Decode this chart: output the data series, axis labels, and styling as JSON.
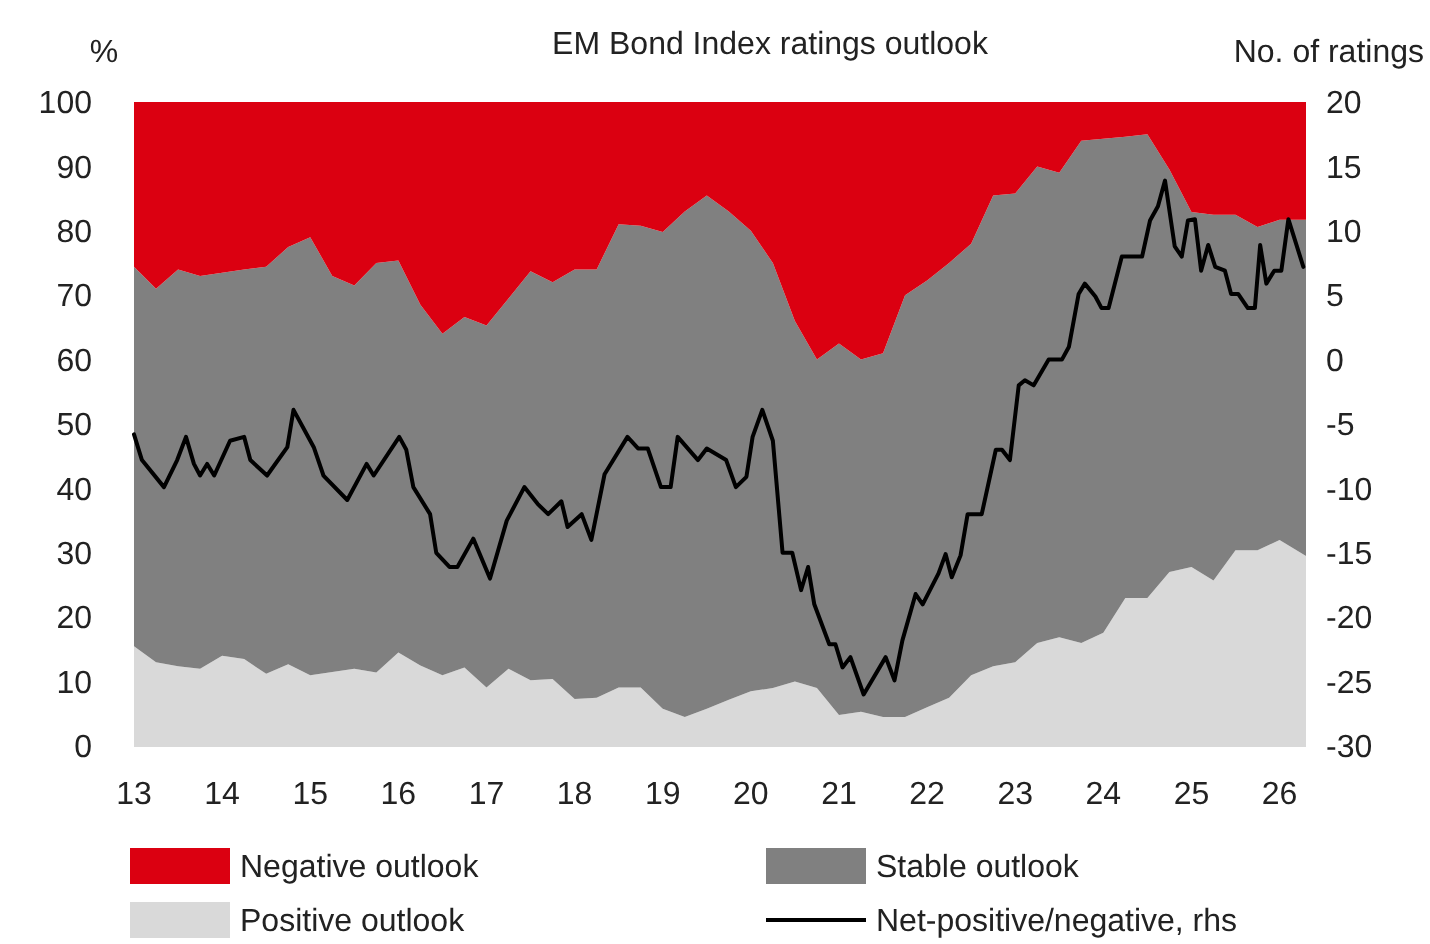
{
  "chart_data": {
    "type": "area",
    "stacked": true,
    "title": "EM Bond Index ratings outlook",
    "ylabel": "%",
    "y2label": "No. of ratings",
    "x": [
      13,
      13.25,
      13.5,
      13.75,
      14,
      14.25,
      14.5,
      14.75,
      15,
      15.25,
      15.5,
      15.75,
      16,
      16.25,
      16.5,
      16.75,
      17,
      17.25,
      17.5,
      17.75,
      18,
      18.25,
      18.5,
      18.75,
      19,
      19.25,
      19.5,
      19.75,
      20,
      20.25,
      20.5,
      20.75,
      21,
      21.25,
      21.5,
      21.75,
      22,
      22.25,
      22.5,
      22.75,
      23,
      23.25,
      23.5,
      23.75,
      24,
      24.25,
      24.5,
      24.75,
      25,
      25.25,
      25.5,
      25.75,
      26,
      26.3
    ],
    "xlim": [
      13,
      26.3
    ],
    "xticks": [
      13,
      14,
      15,
      16,
      17,
      18,
      19,
      20,
      21,
      22,
      23,
      24,
      25,
      26
    ],
    "ylim": [
      0,
      100
    ],
    "yticks": [
      0,
      10,
      20,
      30,
      40,
      50,
      60,
      70,
      80,
      90,
      100
    ],
    "y2lim": [
      -30,
      20
    ],
    "y2ticks": [
      -30,
      -25,
      -20,
      -15,
      -10,
      -5,
      0,
      5,
      10,
      15,
      20
    ],
    "legend": "bottom",
    "grid": false,
    "series": [
      {
        "name": "Positive outlook",
        "color": "#d9d9d9",
        "values": [
          15.5,
          13,
          12.4,
          12,
          14,
          13.5,
          11.2,
          12.7,
          11,
          11.5,
          12,
          11.4,
          14.5,
          12.5,
          11,
          12.2,
          9.1,
          12,
          10.2,
          10.4,
          7.3,
          7.5,
          9.1,
          9.1,
          5.8,
          4.5,
          5.8,
          7.2,
          8.5,
          9,
          10,
          9,
          4.8,
          5.3,
          4.5,
          4.5,
          6,
          7.5,
          11,
          12.4,
          13,
          16,
          16.9,
          16,
          17.6,
          23,
          23,
          27,
          27.8,
          25.7,
          30.4,
          30.4,
          32,
          29.5
        ]
      },
      {
        "name": "Stable outlook",
        "color": "#808080",
        "values": [
          58.9,
          58,
          61.6,
          61,
          59.5,
          60.5,
          63.2,
          64.8,
          68,
          61.5,
          59.5,
          63.6,
          60.9,
          56,
          53,
          54.4,
          56.2,
          57.5,
          63.5,
          61.6,
          66.7,
          66.5,
          71.9,
          71.7,
          74,
          78.5,
          79.7,
          75.8,
          71.5,
          66,
          56,
          51,
          57.7,
          54.7,
          56.5,
          65.5,
          66.3,
          67.5,
          67,
          73.1,
          72.8,
          74,
          72.1,
          78,
          76.7,
          71.6,
          72,
          62.5,
          55.1,
          56.8,
          52.1,
          50.2,
          49.7,
          52.2
        ]
      },
      {
        "name": "Negative outlook",
        "color": "#db0011",
        "values": [
          25.6,
          29,
          26,
          27,
          26.5,
          26,
          25.6,
          22.5,
          21,
          27,
          28.5,
          25,
          24.6,
          31.5,
          36,
          33.4,
          34.7,
          30.5,
          26.3,
          28,
          26,
          26,
          19,
          19.2,
          20.2,
          17,
          14.5,
          17,
          20,
          25,
          34,
          40,
          37.5,
          40,
          39,
          30,
          27.7,
          25,
          22,
          14.5,
          14.2,
          10,
          11,
          6,
          5.7,
          5.4,
          5,
          10.5,
          17.1,
          17.5,
          17.5,
          19.4,
          18.3,
          18.3
        ]
      },
      {
        "name": "Net-positive/negative, rhs",
        "type": "line",
        "axis": "y2",
        "color": "#000000",
        "x": [
          13,
          13.09,
          13.34,
          13.49,
          13.59,
          13.68,
          13.75,
          13.83,
          13.91,
          14.09,
          14.25,
          14.32,
          14.51,
          14.74,
          14.81,
          15.04,
          15.15,
          15.42,
          15.64,
          15.72,
          16.01,
          16.09,
          16.17,
          16.36,
          16.43,
          16.58,
          16.67,
          16.85,
          17.04,
          17.23,
          17.43,
          17.58,
          17.7,
          17.85,
          17.92,
          18.08,
          18.19,
          18.34,
          18.6,
          18.72,
          18.83,
          18.98,
          19.09,
          19.17,
          19.4,
          19.5,
          19.72,
          19.83,
          19.95,
          20.02,
          20.13,
          20.25,
          20.36,
          20.47,
          20.57,
          20.65,
          20.72,
          20.89,
          20.96,
          21.04,
          21.13,
          21.28,
          21.53,
          21.63,
          21.72,
          21.87,
          21.95,
          22.13,
          22.21,
          22.28,
          22.38,
          22.46,
          22.62,
          22.78,
          22.85,
          22.94,
          23.04,
          23.11,
          23.21,
          23.38,
          23.53,
          23.61,
          23.72,
          23.79,
          23.91,
          23.98,
          24.06,
          24.21,
          24.44,
          24.53,
          24.62,
          24.7,
          24.81,
          24.89,
          24.96,
          25.04,
          25.11,
          25.19,
          25.27,
          25.38,
          25.45,
          25.53,
          25.64,
          25.72,
          25.78,
          25.85,
          25.94,
          26.02,
          26.1,
          26.27
        ],
        "values": [
          -5.8,
          -7.8,
          -9.9,
          -7.8,
          -6,
          -8.1,
          -9,
          -8.1,
          -9,
          -6.3,
          -6,
          -7.8,
          -9,
          -6.8,
          -3.9,
          -6.8,
          -9,
          -10.9,
          -8.1,
          -9,
          -6,
          -7,
          -9.9,
          -12,
          -15,
          -16.1,
          -16.1,
          -13.9,
          -17,
          -12.5,
          -9.9,
          -11.2,
          -12,
          -11,
          -13,
          -12,
          -14,
          -8.9,
          -6,
          -6.9,
          -6.9,
          -9.9,
          -9.9,
          -6,
          -7.8,
          -6.9,
          -7.8,
          -9.9,
          -9.1,
          -6,
          -3.9,
          -6.3,
          -15,
          -15,
          -17.9,
          -16.1,
          -19,
          -22.1,
          -22.1,
          -23.9,
          -23.1,
          -26,
          -23.1,
          -24.9,
          -21.8,
          -18.2,
          -19,
          -16.6,
          -15.1,
          -16.9,
          -15.2,
          -12,
          -12,
          -7,
          -7,
          -7.8,
          -2,
          -1.6,
          -2,
          0,
          0,
          1,
          5.1,
          5.9,
          4.9,
          4,
          4,
          8,
          8,
          10.8,
          11.9,
          13.9,
          8.8,
          8,
          10.8,
          10.9,
          6.9,
          8.9,
          7.2,
          6.9,
          5.1,
          5.1,
          4,
          4,
          8.9,
          5.9,
          6.9,
          6.9,
          10.9,
          7.2
        ]
      }
    ]
  }
}
